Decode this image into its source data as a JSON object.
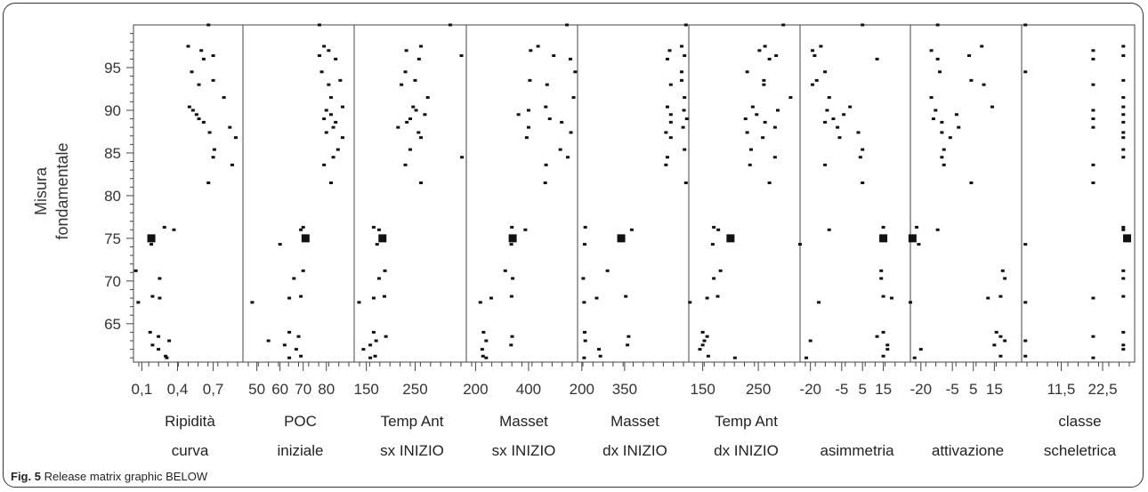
{
  "caption": {
    "label": "Fig. 5",
    "text": "Release matrix graphic BELOW"
  },
  "chart_data": {
    "type": "scatter",
    "ylabel_lines": [
      "Misura",
      "fondamentale"
    ],
    "ylim": [
      60.5,
      100
    ],
    "yticks": [
      65,
      70,
      75,
      80,
      85,
      90,
      95
    ],
    "y_values": [
      61,
      61.2,
      62,
      62.5,
      63,
      63.5,
      64,
      67.5,
      68,
      68.2,
      70.3,
      71.2,
      74.3,
      75,
      76,
      76.3,
      81.5,
      83.6,
      84.5,
      85.4,
      86.8,
      87.4,
      88,
      88.6,
      89,
      89.5,
      90,
      90.4,
      91.5,
      93,
      93.5,
      94.5,
      96,
      96.4,
      97,
      97.5,
      100
    ],
    "point_color": "#111111",
    "highlight_y": 75,
    "panels": [
      {
        "label_lines": [
          "Ripidità",
          "curva"
        ],
        "ticks": [
          "0,1",
          "0,4",
          "0,7"
        ],
        "tick_values": [
          0.1,
          0.4,
          0.7
        ],
        "xlim": [
          0.03,
          0.95
        ],
        "x_values": [
          0.31,
          0.3,
          0.24,
          0.19,
          0.33,
          0.24,
          0.17,
          0.07,
          0.25,
          0.19,
          0.25,
          0.05,
          0.18,
          0.18,
          0.37,
          0.29,
          0.66,
          0.86,
          0.7,
          0.71,
          0.89,
          0.67,
          0.84,
          0.62,
          0.58,
          0.56,
          0.53,
          0.5,
          0.79,
          0.58,
          0.7,
          0.52,
          0.62,
          0.7,
          0.6,
          0.49,
          0.66
        ]
      },
      {
        "label_lines": [
          "POC",
          "iniziale"
        ],
        "ticks": [
          "50",
          "60",
          "70",
          "80"
        ],
        "tick_values": [
          50,
          60,
          70,
          80
        ],
        "xlim": [
          44,
          92
        ],
        "x_values": [
          64,
          69,
          67,
          62,
          55,
          68,
          64,
          48,
          64,
          69,
          66,
          70,
          60,
          71,
          69,
          70,
          82,
          79,
          83,
          85,
          87,
          80,
          83,
          84,
          79,
          82,
          80,
          87,
          82,
          81,
          86,
          78,
          84,
          77,
          81,
          79,
          77
        ]
      },
      {
        "label_lines": [
          "Temp Ant",
          "sx INIZIO"
        ],
        "ticks": [
          "150",
          "250"
        ],
        "tick_values": [
          150,
          250
        ],
        "xlim": [
          125,
          355
        ],
        "x_values": [
          158,
          168,
          144,
          158,
          170,
          190,
          165,
          135,
          165,
          187,
          176,
          188,
          172,
          183,
          176,
          165,
          262,
          230,
          346,
          240,
          262,
          257,
          215,
          233,
          240,
          270,
          252,
          246,
          276,
          222,
          250,
          230,
          258,
          345,
          232,
          262,
          322
        ]
      },
      {
        "label_lines": [
          "Masset",
          "sx INIZIO"
        ],
        "ticks": [
          "200",
          "400"
        ],
        "tick_values": [
          200,
          400
        ],
        "xlim": [
          165,
          585
        ],
        "x_values": [
          240,
          228,
          225,
          334,
          240,
          338,
          230,
          218,
          259,
          336,
          340,
          312,
          335,
          340,
          388,
          337,
          463,
          466,
          548,
          520,
          393,
          560,
          400,
          525,
          480,
          362,
          400,
          465,
          570,
          470,
          405,
          576,
          558,
          495,
          408,
          436,
          545
        ]
      },
      {
        "label_lines": [
          "Masset",
          "dx INIZIO"
        ],
        "ticks": [
          "200",
          "350"
        ],
        "tick_values": [
          200,
          350
        ],
        "xlim": [
          185,
          575
        ],
        "x_values": [
          208,
          265,
          260,
          360,
          212,
          364,
          210,
          208,
          252,
          354,
          205,
          290,
          210,
          338,
          375,
          212,
          565,
          495,
          500,
          560,
          512,
          495,
          555,
          512,
          568,
          512,
          558,
          500,
          560,
          512,
          550,
          550,
          500,
          560,
          508,
          550,
          565
        ]
      },
      {
        "label_lines": [
          "Temp Ant",
          "dx INIZIO"
        ],
        "ticks": [
          "150",
          "250"
        ],
        "tick_values": [
          150,
          250
        ],
        "xlim": [
          125,
          325
        ],
        "x_values": [
          208,
          160,
          145,
          150,
          153,
          158,
          150,
          127,
          158,
          177,
          170,
          182,
          168,
          200,
          178,
          170,
          270,
          235,
          280,
          237,
          258,
          230,
          280,
          262,
          227,
          247,
          285,
          240,
          308,
          260,
          260,
          230,
          270,
          282,
          252,
          262,
          295
        ]
      },
      {
        "label_lines": [
          "",
          "asimmetria"
        ],
        "ticks": [
          "-20",
          "-5",
          "5",
          "15"
        ],
        "tick_values": [
          -20,
          -5,
          5,
          15
        ],
        "xlim": [
          -25,
          28
        ],
        "x_values": [
          -22,
          15,
          17,
          17,
          -20,
          12,
          15,
          -16,
          19,
          15,
          14,
          14,
          -25,
          15,
          -11,
          15,
          5,
          -13,
          4,
          5,
          -6,
          3,
          -7,
          -13,
          -9,
          -4,
          -12,
          -1,
          -11,
          -19,
          -17,
          -13,
          12,
          -18,
          -19,
          -15,
          5
        ]
      },
      {
        "label_lines": [
          "",
          "attivazione"
        ],
        "ticks": [
          "-20",
          "-5",
          "5",
          "15"
        ],
        "tick_values": [
          -20,
          -5,
          5,
          15
        ],
        "xlim": [
          -25,
          28
        ],
        "x_values": [
          -23,
          18,
          -20,
          15,
          20,
          18,
          16,
          -25,
          12,
          18,
          20,
          19,
          -21,
          -24,
          -12,
          -22,
          4,
          -9,
          -10,
          -9,
          -6,
          -10,
          -2,
          -10,
          -14,
          -3,
          -13,
          14,
          -15,
          10,
          4,
          -11,
          -12,
          3,
          -15,
          9,
          -12
        ]
      },
      {
        "label_lines": [
          "classe",
          "scheletrica"
        ],
        "ticks": [
          "11,5",
          "22,5"
        ],
        "tick_values": [
          11.5,
          22.5
        ],
        "xlim": [
          1,
          31
        ],
        "x_values": [
          20,
          2,
          28,
          28,
          2,
          20,
          28,
          2,
          20,
          28,
          28,
          28,
          2,
          29,
          28,
          28,
          20,
          20,
          28,
          28,
          28,
          28,
          20,
          28,
          20,
          28,
          20,
          28,
          28,
          20,
          28,
          2,
          20,
          28,
          20,
          28,
          2
        ]
      }
    ]
  }
}
